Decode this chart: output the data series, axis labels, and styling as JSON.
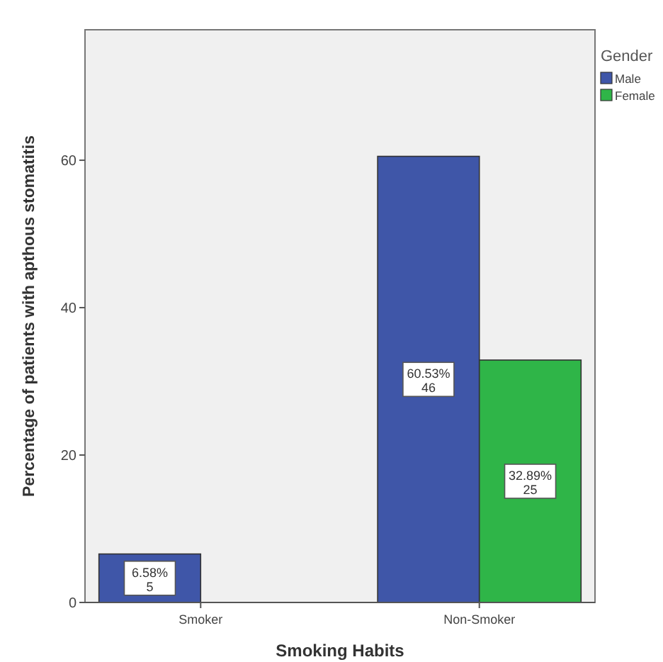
{
  "chart_data": {
    "type": "bar",
    "xlabel": "Smoking Habits",
    "ylabel": "Percentage of patients with apthous stomatitis",
    "legend_title": "Gender",
    "legend": "top right",
    "categories": [
      "Smoker",
      "Non-Smoker"
    ],
    "series": [
      {
        "name": "Male",
        "color": "#3f56a8",
        "values": [
          6.58,
          60.53
        ],
        "value_labels": [
          "6.58%\n5",
          "60.53%\n46"
        ]
      },
      {
        "name": "Female",
        "color": "#2fb548",
        "values": [
          null,
          32.89
        ],
        "value_labels": [
          null,
          "32.89%\n25"
        ]
      }
    ],
    "ylim": [
      0,
      77.7
    ],
    "yticks": [
      0,
      20,
      40,
      60
    ],
    "grid": false
  }
}
